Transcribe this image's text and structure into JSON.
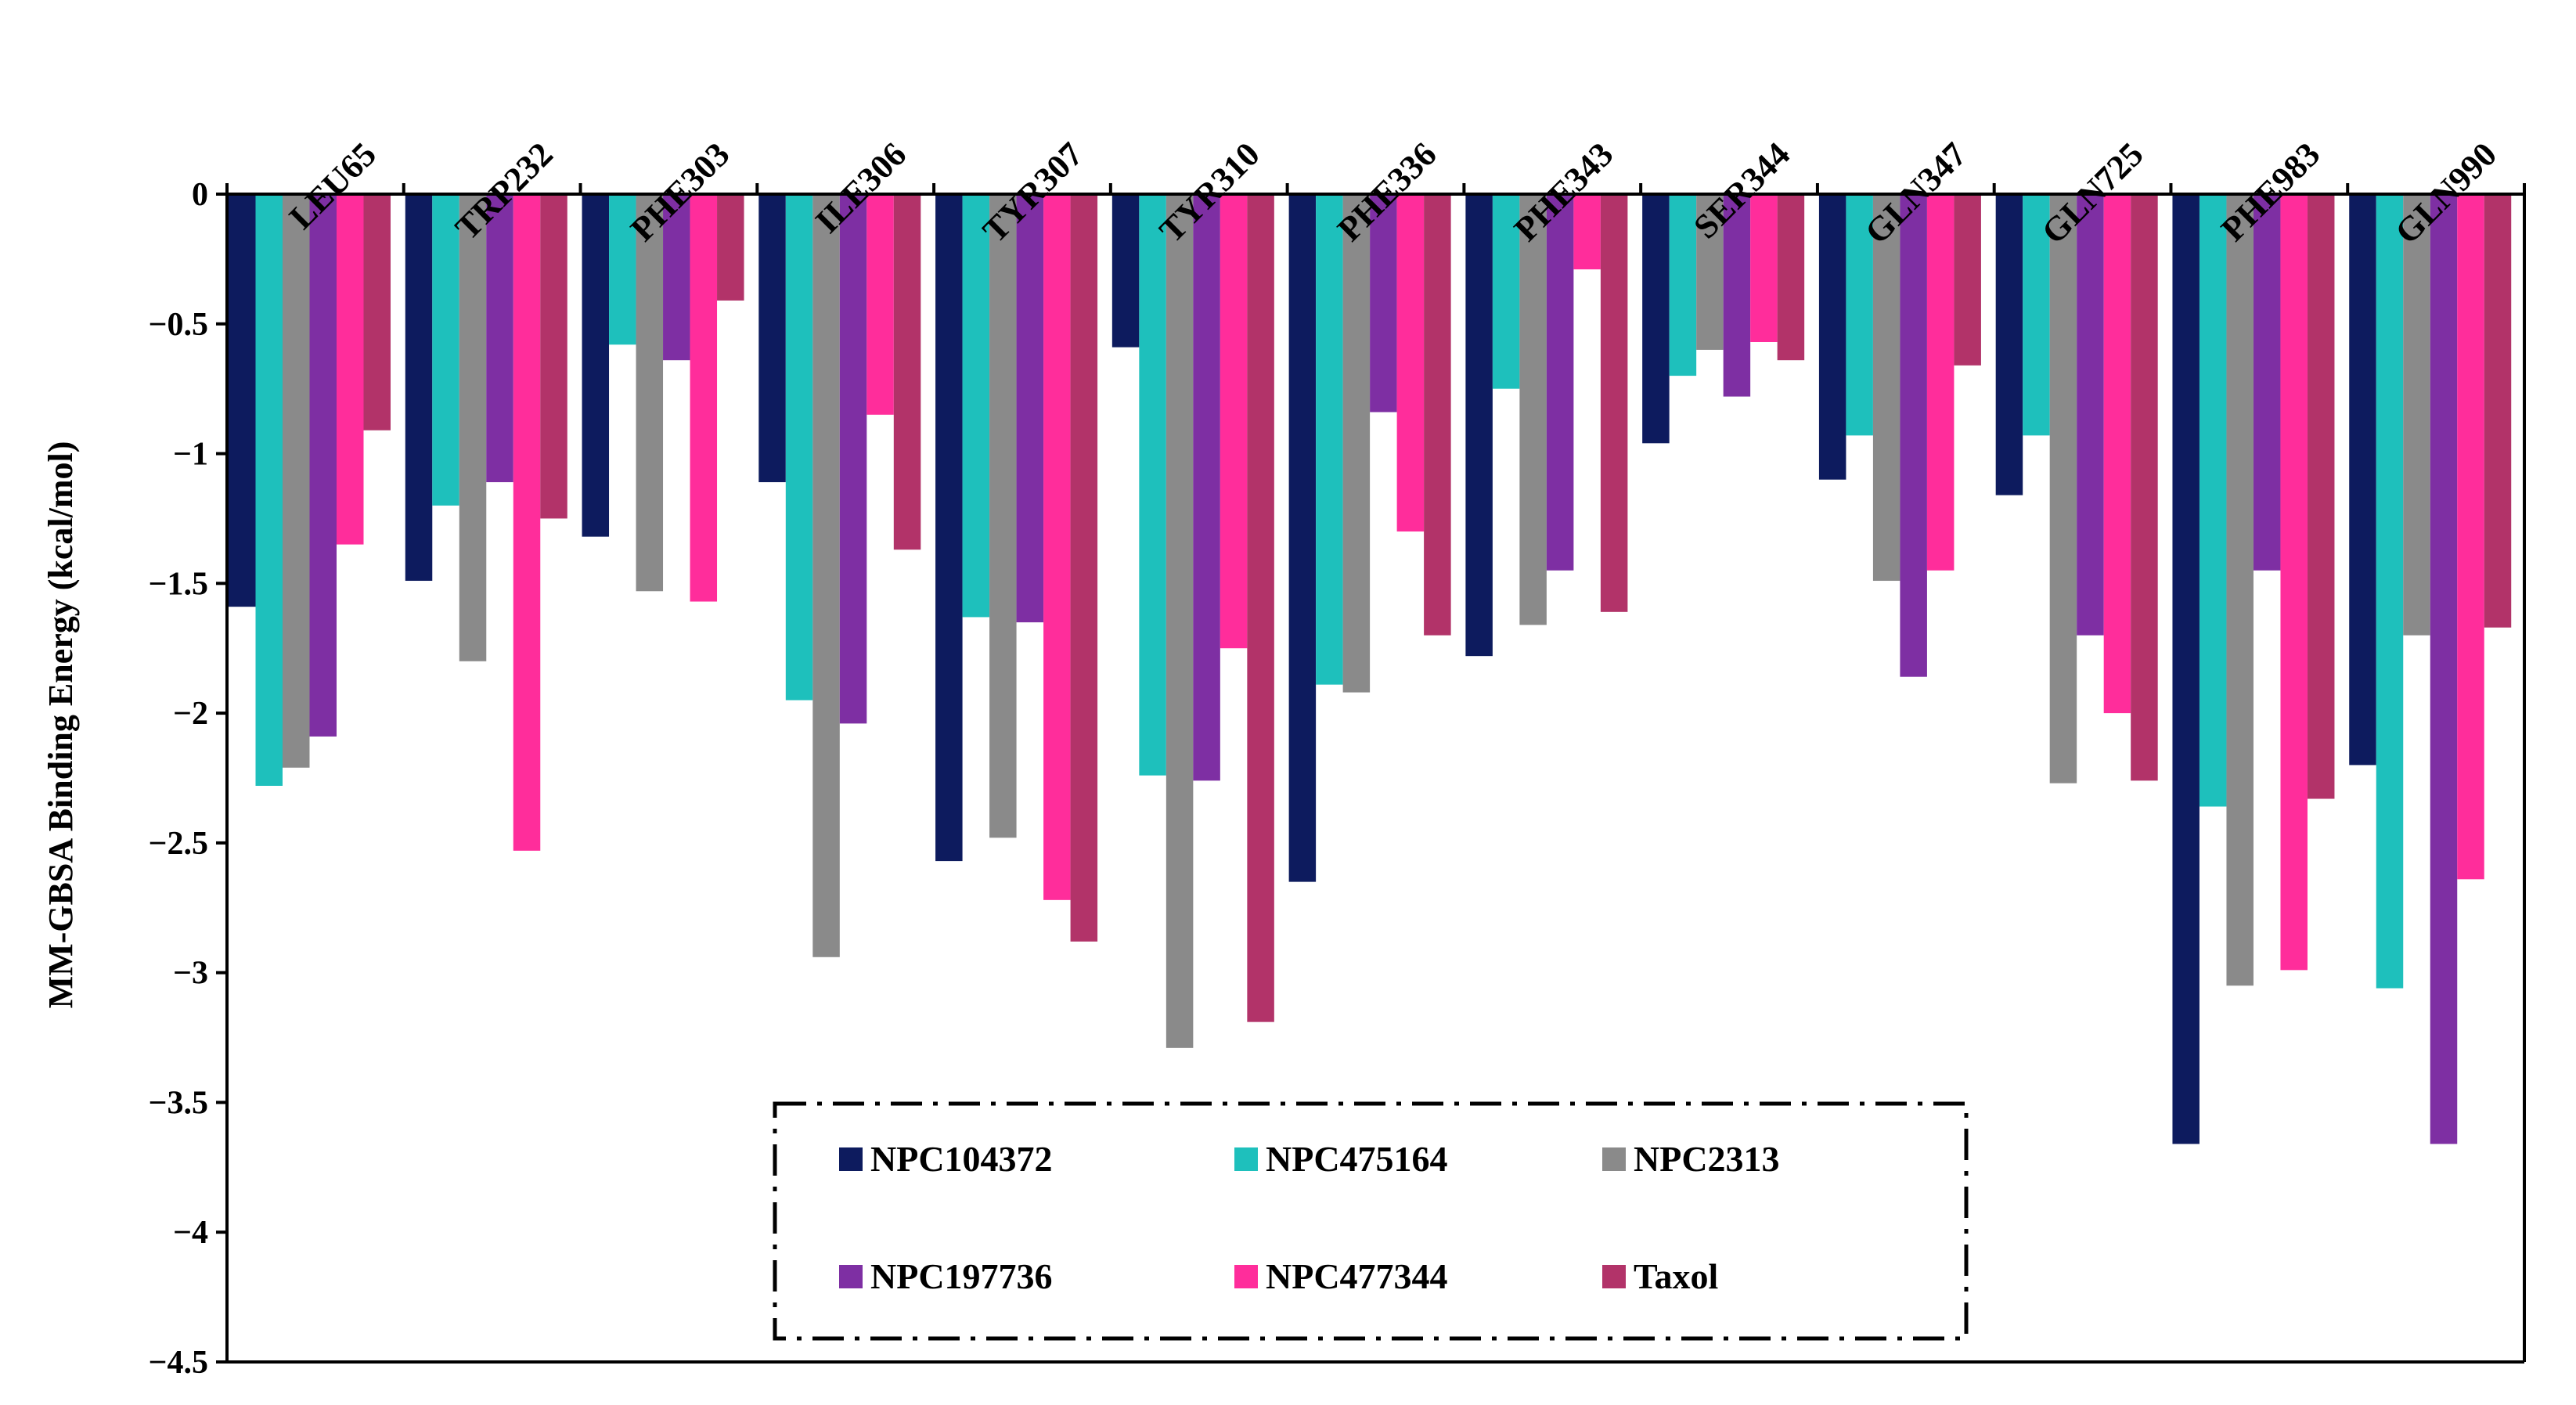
{
  "chart_data": {
    "type": "bar",
    "title": "",
    "xlabel": "",
    "ylabel": "MM-GBSA Binding Energy (kcal/mol)",
    "ylim": [
      -4.5,
      0
    ],
    "yticks": [
      0,
      -0.5,
      -1,
      -1.5,
      -2,
      -2.5,
      -3,
      -3.5,
      -4,
      -4.5
    ],
    "ytick_labels": [
      "0",
      "−0.5",
      "−1",
      "−1.5",
      "−2",
      "−2.5",
      "−3",
      "−3.5",
      "−4",
      "−4.5"
    ],
    "grid": false,
    "legend_position": "bottom-center",
    "categories": [
      "LEU65",
      "TRP232",
      "PHE303",
      "ILE306",
      "TYR307",
      "TYR310",
      "PHE336",
      "PHE343",
      "SER344",
      "GLN347",
      "GLN725",
      "PHE983",
      "GLN990"
    ],
    "series": [
      {
        "name": "NPC104372",
        "color": "#0d1b5e",
        "values": [
          -1.59,
          -1.49,
          -1.32,
          -1.11,
          -2.57,
          -0.59,
          -2.65,
          -1.78,
          -0.96,
          -1.1,
          -1.16,
          -3.66,
          -2.2
        ]
      },
      {
        "name": "NPC475164",
        "color": "#1ec0bc",
        "values": [
          -2.28,
          -1.2,
          -0.58,
          -1.95,
          -1.63,
          -2.24,
          -1.89,
          -0.75,
          -0.7,
          -0.93,
          -0.93,
          -2.36,
          -3.06
        ]
      },
      {
        "name": "NPC2313",
        "color": "#8a8a8a",
        "values": [
          -2.21,
          -1.8,
          -1.53,
          -2.94,
          -2.48,
          -3.29,
          -1.92,
          -1.66,
          -0.6,
          -1.49,
          -2.27,
          -3.05,
          -1.7
        ]
      },
      {
        "name": "NPC197736",
        "color": "#7e2fa3",
        "values": [
          -2.09,
          -1.11,
          -0.64,
          -2.04,
          -1.65,
          -2.26,
          -0.84,
          -1.45,
          -0.78,
          -1.86,
          -1.7,
          -1.45,
          -3.66
        ]
      },
      {
        "name": "NPC477344",
        "color": "#ff2d9b",
        "values": [
          -1.35,
          -2.53,
          -1.57,
          -0.85,
          -2.72,
          -1.75,
          -1.3,
          -0.29,
          -0.57,
          -1.45,
          -2.0,
          -2.99,
          -2.64
        ]
      },
      {
        "name": "Taxol",
        "color": "#b23369",
        "values": [
          -0.91,
          -1.25,
          -0.41,
          -1.37,
          -2.88,
          -3.19,
          -1.7,
          -1.61,
          -0.64,
          -0.66,
          -2.26,
          -2.33,
          -1.67
        ]
      }
    ]
  }
}
